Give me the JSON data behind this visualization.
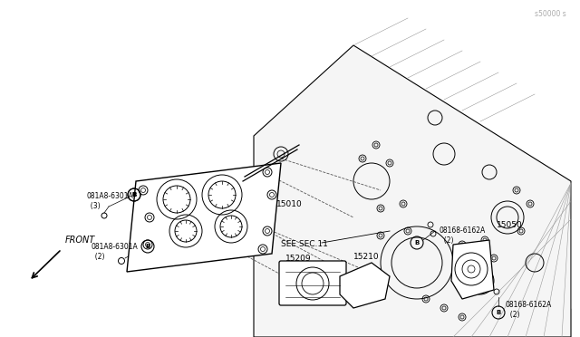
{
  "title": "",
  "bg_color": "#ffffff",
  "line_color": "#000000",
  "dashed_line_color": "#555555",
  "light_line_color": "#888888",
  "labels": {
    "see_sec": "SEE SEC.11",
    "front": "FRONT",
    "part_15010": "15010",
    "part_15050": "15050",
    "part_15209": "15209",
    "part_15210": "15210",
    "bolt_top": "081A8-6301A\n  (3)",
    "bolt_mid": "081A8-6301A\n  (2)",
    "bolt_right1": "08168-6162A\n  (2)",
    "bolt_right2": "08168-6162A\n  (2)",
    "watermark": "s50000 s"
  },
  "figsize": [
    6.4,
    3.72
  ],
  "dpi": 100
}
